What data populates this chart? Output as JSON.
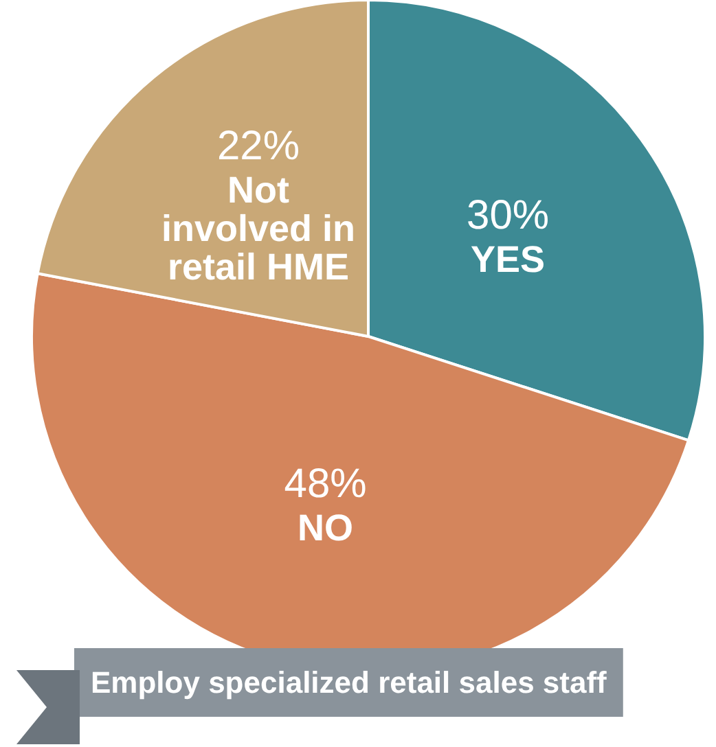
{
  "chart_data": {
    "type": "pie",
    "title": "Employ specialized retail sales staff",
    "categories": [
      "YES",
      "NO",
      "Not involved in retail HME"
    ],
    "values": [
      30,
      48,
      22
    ],
    "colors": [
      "#3d8a94",
      "#d4855c",
      "#c9a877"
    ],
    "value_labels": [
      "30%",
      "48%",
      "22%"
    ],
    "legend": false
  }
}
